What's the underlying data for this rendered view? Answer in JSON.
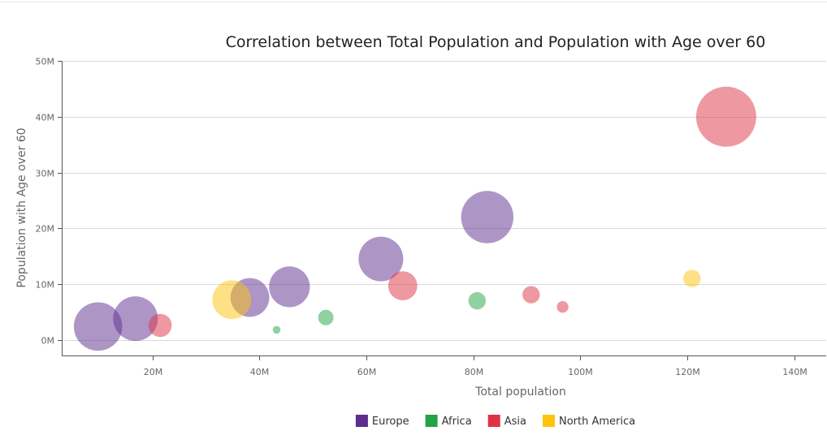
{
  "chart_data": {
    "type": "scatter",
    "title": "Correlation between Total Population and Population with Age over 60",
    "xlabel": "Total population",
    "ylabel": "Population with Age over 60",
    "xlim": [
      3,
      146
    ],
    "ylim": [
      -2.8,
      50
    ],
    "x_ticks": [
      20,
      40,
      60,
      80,
      100,
      120,
      140
    ],
    "x_tick_labels": [
      "20M",
      "40M",
      "60M",
      "80M",
      "100M",
      "120M",
      "140M"
    ],
    "y_ticks": [
      0,
      10,
      20,
      30,
      40,
      50
    ],
    "y_tick_labels": [
      "0M",
      "10M",
      "20M",
      "30M",
      "40M",
      "50M"
    ],
    "grid": "horizontal",
    "legend_position": "bottom-center",
    "bubble_size_encoding": "proportion over 60",
    "series": [
      {
        "name": "Europe",
        "color": "#5b2d8e",
        "points": [
          {
            "x": 9.8,
            "y": 2.4,
            "size": 0.25
          },
          {
            "x": 16.8,
            "y": 3.8,
            "size": 0.23
          },
          {
            "x": 38.2,
            "y": 7.6,
            "size": 0.2
          },
          {
            "x": 45.6,
            "y": 9.5,
            "size": 0.21
          },
          {
            "x": 62.7,
            "y": 14.5,
            "size": 0.23
          },
          {
            "x": 82.6,
            "y": 22.0,
            "size": 0.27
          }
        ]
      },
      {
        "name": "Africa",
        "color": "#22a345",
        "points": [
          {
            "x": 43.2,
            "y": 1.8,
            "size": 0.04
          },
          {
            "x": 52.4,
            "y": 4.0,
            "size": 0.08
          },
          {
            "x": 80.7,
            "y": 7.0,
            "size": 0.09
          }
        ]
      },
      {
        "name": "Asia",
        "color": "#dd3345",
        "points": [
          {
            "x": 21.4,
            "y": 2.6,
            "size": 0.12
          },
          {
            "x": 66.8,
            "y": 9.7,
            "size": 0.15
          },
          {
            "x": 90.8,
            "y": 8.1,
            "size": 0.09
          },
          {
            "x": 96.7,
            "y": 5.9,
            "size": 0.06
          },
          {
            "x": 127.3,
            "y": 40.0,
            "size": 0.31
          }
        ]
      },
      {
        "name": "North America",
        "color": "#fdc30f",
        "points": [
          {
            "x": 34.8,
            "y": 7.2,
            "size": 0.2
          },
          {
            "x": 120.9,
            "y": 11.0,
            "size": 0.09
          }
        ]
      }
    ]
  }
}
